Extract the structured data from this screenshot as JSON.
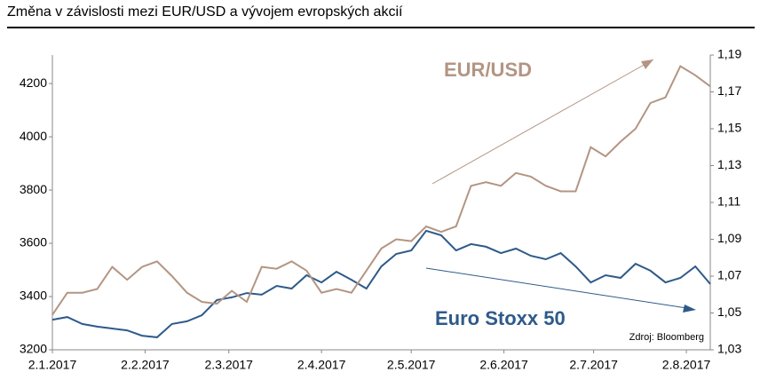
{
  "chart_data": {
    "type": "line",
    "title": "Změna v závislosti mezi EUR/USD a vývojem evropských akcií",
    "annotations": [
      "EUR/USD",
      "Euro Stoxx 50",
      "Zdroj: Bloomberg"
    ],
    "x": [
      "2017-01-02",
      "2017-01-07",
      "2017-01-12",
      "2017-01-17",
      "2017-01-22",
      "2017-01-27",
      "2017-02-01",
      "2017-02-06",
      "2017-02-11",
      "2017-02-16",
      "2017-02-21",
      "2017-02-26",
      "2017-03-03",
      "2017-03-08",
      "2017-03-13",
      "2017-03-18",
      "2017-03-23",
      "2017-03-28",
      "2017-04-02",
      "2017-04-07",
      "2017-04-12",
      "2017-04-17",
      "2017-04-22",
      "2017-04-27",
      "2017-05-02",
      "2017-05-07",
      "2017-05-12",
      "2017-05-17",
      "2017-05-22",
      "2017-05-27",
      "2017-06-01",
      "2017-06-06",
      "2017-06-11",
      "2017-06-16",
      "2017-06-21",
      "2017-06-26",
      "2017-07-01",
      "2017-07-06",
      "2017-07-11",
      "2017-07-16",
      "2017-07-21",
      "2017-07-26",
      "2017-07-31",
      "2017-08-05",
      "2017-08-10"
    ],
    "xlim": [
      "2017-01-02",
      "2017-08-10"
    ],
    "xticks": [
      {
        "value": "2017-01-02",
        "label": "2.1.2017"
      },
      {
        "value": "2017-02-02",
        "label": "2.2.2017"
      },
      {
        "value": "2017-03-02",
        "label": "2.3.2017"
      },
      {
        "value": "2017-04-02",
        "label": "2.4.2017"
      },
      {
        "value": "2017-05-02",
        "label": "2.5.2017"
      },
      {
        "value": "2017-06-02",
        "label": "2.6.2017"
      },
      {
        "value": "2017-07-02",
        "label": "2.7.2017"
      },
      {
        "value": "2017-08-02",
        "label": "2.8.2017"
      }
    ],
    "ylim": [
      3200,
      4307
    ],
    "yticks": [
      3200,
      3400,
      3600,
      3800,
      4000,
      4200
    ],
    "y2lim": [
      1.03,
      1.19
    ],
    "y2ticks": [
      {
        "value": 1.03,
        "label": "1,03"
      },
      {
        "value": 1.05,
        "label": "1,05"
      },
      {
        "value": 1.07,
        "label": "1,07"
      },
      {
        "value": 1.09,
        "label": "1,09"
      },
      {
        "value": 1.11,
        "label": "1,11"
      },
      {
        "value": 1.13,
        "label": "1,13"
      },
      {
        "value": 1.15,
        "label": "1,15"
      },
      {
        "value": 1.17,
        "label": "1,17"
      },
      {
        "value": 1.19,
        "label": "1,19"
      }
    ],
    "series": [
      {
        "name": "Euro Stoxx 50",
        "color": "#2e5a8a",
        "values": [
          3313,
          3323,
          3297,
          3287,
          3280,
          3273,
          3253,
          3247,
          3297,
          3307,
          3330,
          3387,
          3397,
          3413,
          3407,
          3440,
          3430,
          3480,
          3453,
          3493,
          3463,
          3430,
          3513,
          3560,
          3573,
          3647,
          3630,
          3573,
          3597,
          3587,
          3563,
          3580,
          3553,
          3540,
          3563,
          3513,
          3453,
          3480,
          3470,
          3523,
          3497,
          3453,
          3470,
          3513,
          3447
        ]
      },
      {
        "name": "EUR/USD",
        "color": "#b39583",
        "axis": "y2",
        "values": [
          1.049,
          1.061,
          1.061,
          1.063,
          1.075,
          1.068,
          1.075,
          1.078,
          1.07,
          1.061,
          1.056,
          1.055,
          1.062,
          1.056,
          1.075,
          1.074,
          1.078,
          1.073,
          1.061,
          1.063,
          1.061,
          1.073,
          1.085,
          1.09,
          1.089,
          1.097,
          1.094,
          1.097,
          1.119,
          1.121,
          1.119,
          1.126,
          1.124,
          1.119,
          1.116,
          1.116,
          1.14,
          1.135,
          1.143,
          1.15,
          1.164,
          1.167,
          1.184,
          1.179,
          1.173
        ]
      }
    ]
  }
}
